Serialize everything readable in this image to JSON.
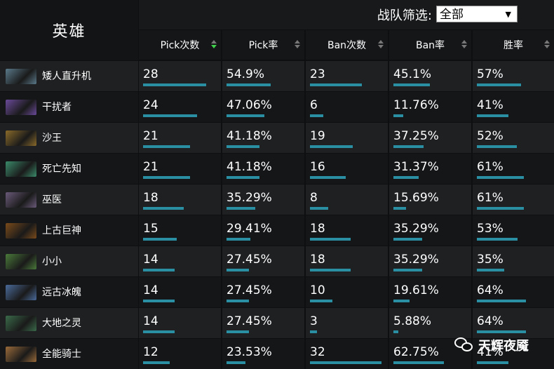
{
  "header": {
    "hero_title": "英雄",
    "filter_label": "战队筛选:",
    "team_select_value": "全部"
  },
  "columns": [
    "Pick次数",
    "Pick率",
    "Ban次数",
    "Ban率",
    "胜率"
  ],
  "rows": [
    {
      "hero": "矮人直升机",
      "pick": "28",
      "pick_rate": "54.9%",
      "ban": "23",
      "ban_rate": "45.1%",
      "win_rate": "57%"
    },
    {
      "hero": "干扰者",
      "pick": "24",
      "pick_rate": "47.06%",
      "ban": "6",
      "ban_rate": "11.76%",
      "win_rate": "41%"
    },
    {
      "hero": "沙王",
      "pick": "21",
      "pick_rate": "41.18%",
      "ban": "19",
      "ban_rate": "37.25%",
      "win_rate": "52%"
    },
    {
      "hero": "死亡先知",
      "pick": "21",
      "pick_rate": "41.18%",
      "ban": "16",
      "ban_rate": "31.37%",
      "win_rate": "61%"
    },
    {
      "hero": "巫医",
      "pick": "18",
      "pick_rate": "35.29%",
      "ban": "8",
      "ban_rate": "15.69%",
      "win_rate": "61%"
    },
    {
      "hero": "上古巨神",
      "pick": "15",
      "pick_rate": "29.41%",
      "ban": "18",
      "ban_rate": "35.29%",
      "win_rate": "53%"
    },
    {
      "hero": "小小",
      "pick": "14",
      "pick_rate": "27.45%",
      "ban": "18",
      "ban_rate": "35.29%",
      "win_rate": "35%"
    },
    {
      "hero": "远古冰魄",
      "pick": "14",
      "pick_rate": "27.45%",
      "ban": "10",
      "ban_rate": "19.61%",
      "win_rate": "64%"
    },
    {
      "hero": "大地之灵",
      "pick": "14",
      "pick_rate": "27.45%",
      "ban": "3",
      "ban_rate": "5.88%",
      "win_rate": "64%"
    },
    {
      "hero": "全能骑士",
      "pick": "12",
      "pick_rate": "23.53%",
      "ban": "32",
      "ban_rate": "62.75%",
      "win_rate": "41%"
    }
  ],
  "colors": {
    "bar": "#2a8fa3",
    "sort_active": "#3fd14b"
  },
  "portrait_colors": [
    "#5a7a8a",
    "#6a4a9a",
    "#8a6a2a",
    "#3a8a6a",
    "#6a5a7a",
    "#7a4a1a",
    "#4a7a3a",
    "#4a6a9a",
    "#3a6a4a",
    "#9a6a3a"
  ],
  "watermark": {
    "text": "天辉夜魇",
    "icon": "wechat-icon"
  }
}
